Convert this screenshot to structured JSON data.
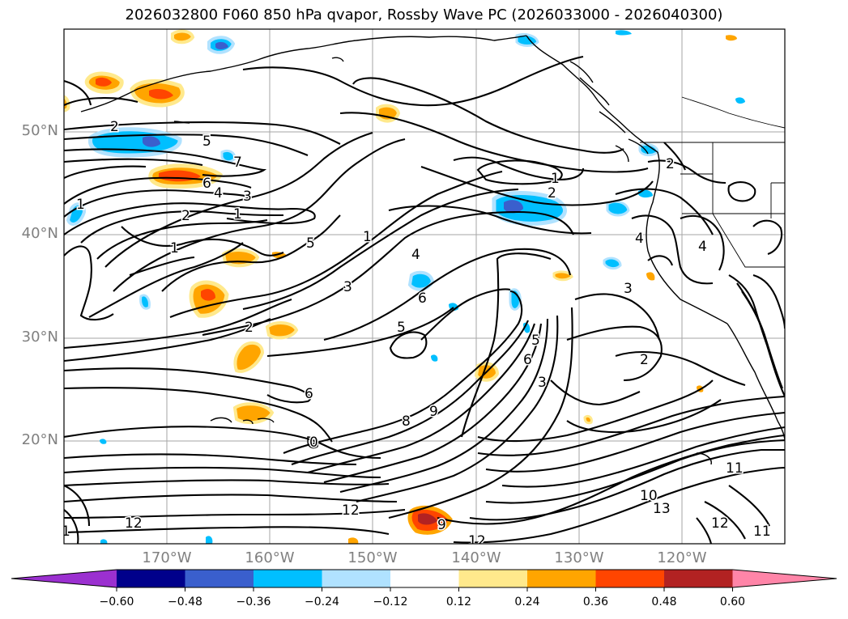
{
  "title": "2026032800 F060 850 hPa qvapor, Rossby Wave PC (2026033000 - 2026040300)",
  "latitude_labels": [
    "50°N",
    "40°N",
    "30°N",
    "20°N"
  ],
  "longitude_labels": [
    "170°W",
    "160°W",
    "150°W",
    "140°W",
    "130°W",
    "120°W"
  ],
  "colorbar": {
    "tick_labels": [
      "−0.60",
      "−0.48",
      "−0.36",
      "−0.24",
      "−0.12",
      "0.12",
      "0.24",
      "0.36",
      "0.48",
      "0.60"
    ],
    "colors": [
      "#9b30d0",
      "#00008b",
      "#3a5fcd",
      "#00bfff",
      "#b0e2ff",
      "#ffffff",
      "#ffe98c",
      "#ffa500",
      "#ff4500",
      "#b22222",
      "#ff85a8"
    ]
  },
  "contour_labels": [
    "2",
    "5",
    "7",
    "6",
    "4",
    "3",
    "1",
    "2",
    "1",
    "1",
    "5",
    "1",
    "4",
    "3",
    "2",
    "5",
    "6",
    "6",
    "8",
    "9",
    "0",
    "12",
    "12",
    "9",
    "12",
    "3",
    "5",
    "6",
    "1",
    "2",
    "2",
    "4",
    "4",
    "3",
    "2",
    "10",
    "13",
    "11",
    "12",
    "11",
    "1"
  ]
}
